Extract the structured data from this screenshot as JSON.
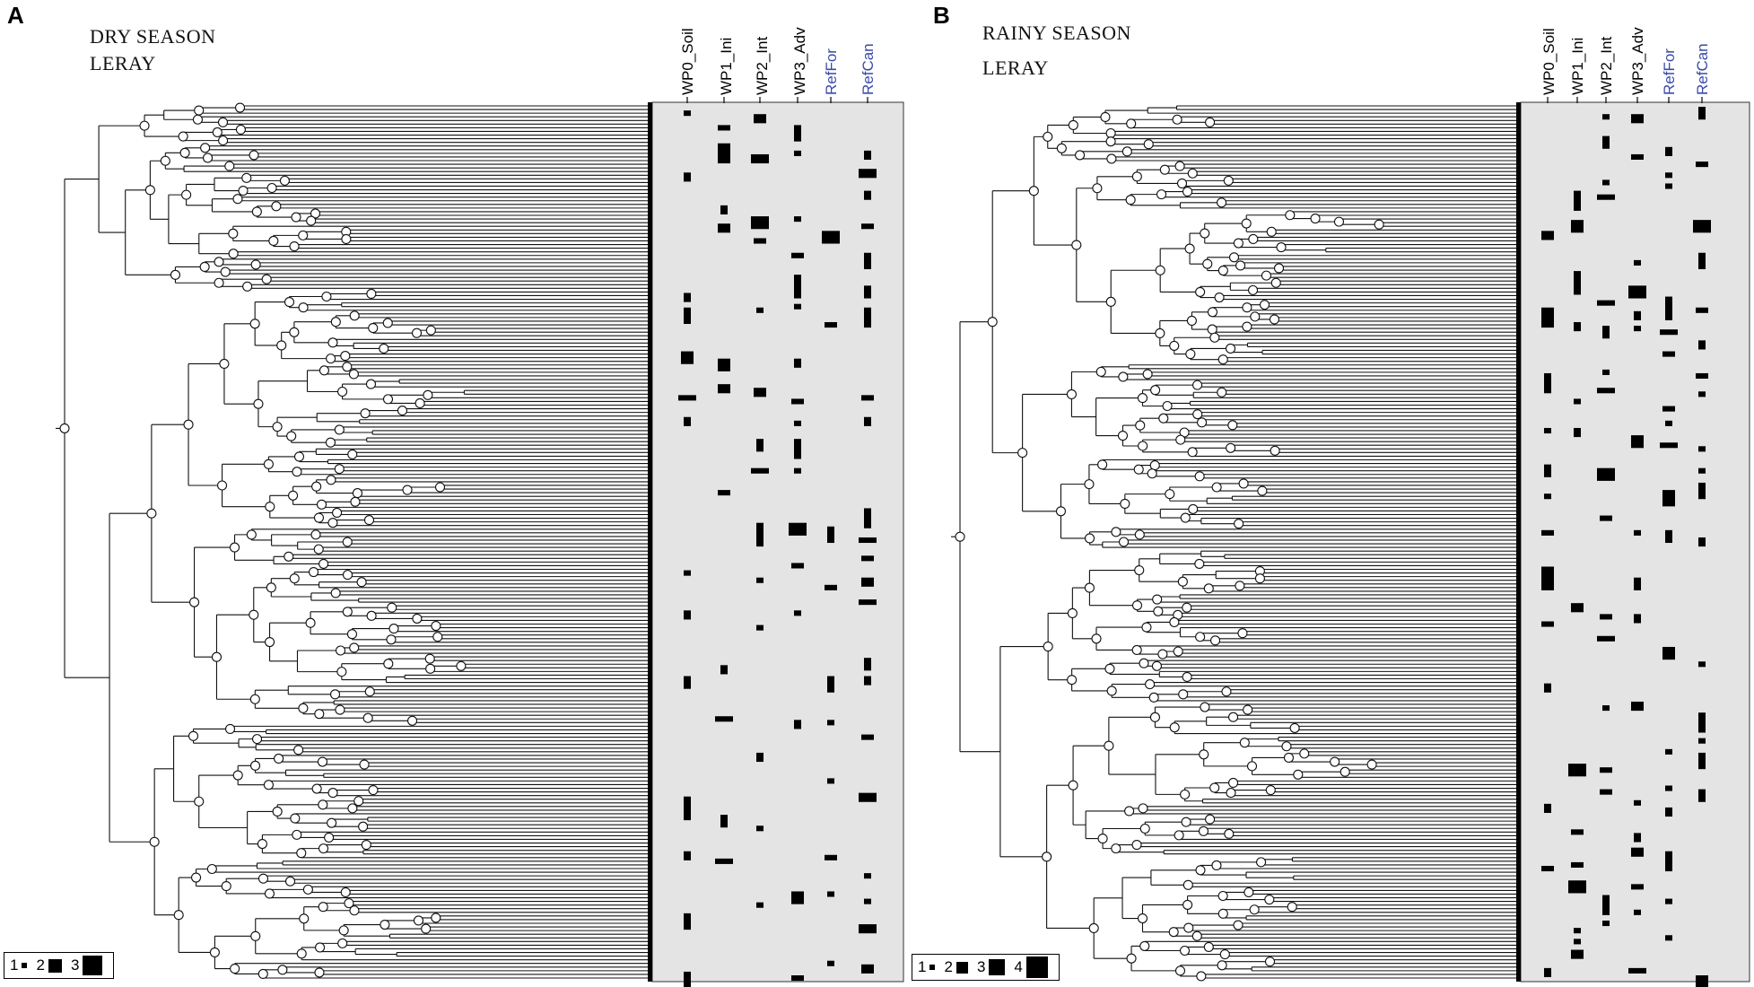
{
  "panels": [
    {
      "letter": "A",
      "season": "DRY SEASON",
      "method": "LERAY",
      "columns": [
        {
          "label": "WP0_Soil",
          "ref": false
        },
        {
          "label": "WP1_Ini",
          "ref": false
        },
        {
          "label": "WP2_Int",
          "ref": false
        },
        {
          "label": "WP3_Adv",
          "ref": false
        },
        {
          "label": "RefFor",
          "ref": true
        },
        {
          "label": "RefCan",
          "ref": true
        }
      ],
      "legend": [
        {
          "label": "1",
          "level": 1
        },
        {
          "label": "2",
          "level": 2
        },
        {
          "label": "3",
          "level": 3
        }
      ]
    },
    {
      "letter": "B",
      "season": "RAINY SEASON",
      "method": "LERAY",
      "columns": [
        {
          "label": "WP0_Soil",
          "ref": false
        },
        {
          "label": "WP1_Ini",
          "ref": false
        },
        {
          "label": "WP2_Int",
          "ref": false
        },
        {
          "label": "WP3_Adv",
          "ref": false
        },
        {
          "label": "RefFor",
          "ref": true
        },
        {
          "label": "RefCan",
          "ref": true
        }
      ],
      "legend": [
        {
          "label": "1",
          "level": 1
        },
        {
          "label": "2",
          "level": 2
        },
        {
          "label": "3",
          "level": 3
        },
        {
          "label": "4",
          "level": 4
        }
      ]
    }
  ]
}
